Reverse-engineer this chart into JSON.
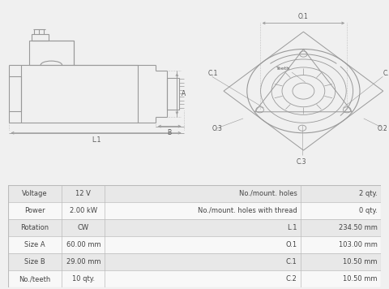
{
  "bg_color": "#f0f0f0",
  "table_bg_alt": "#e8e8e8",
  "table_bg_white": "#f8f8f8",
  "table_border": "#bbbbbb",
  "table_data": [
    [
      "Voltage",
      "12 V",
      "No./mount. holes",
      "2 qty."
    ],
    [
      "Power",
      "2.00 kW",
      "No./mount. holes with thread",
      "0 qty."
    ],
    [
      "Rotation",
      "CW",
      "L.1",
      "234.50 mm"
    ],
    [
      "Size A",
      "60.00 mm",
      "O.1",
      "103.00 mm"
    ],
    [
      "Size B",
      "29.00 mm",
      "C.1",
      "10.50 mm"
    ],
    [
      "No./teeth",
      "10 qty.",
      "C.2",
      "10.50 mm"
    ]
  ],
  "line_color": "#999999",
  "drawing_bg": "#f8f8f8"
}
